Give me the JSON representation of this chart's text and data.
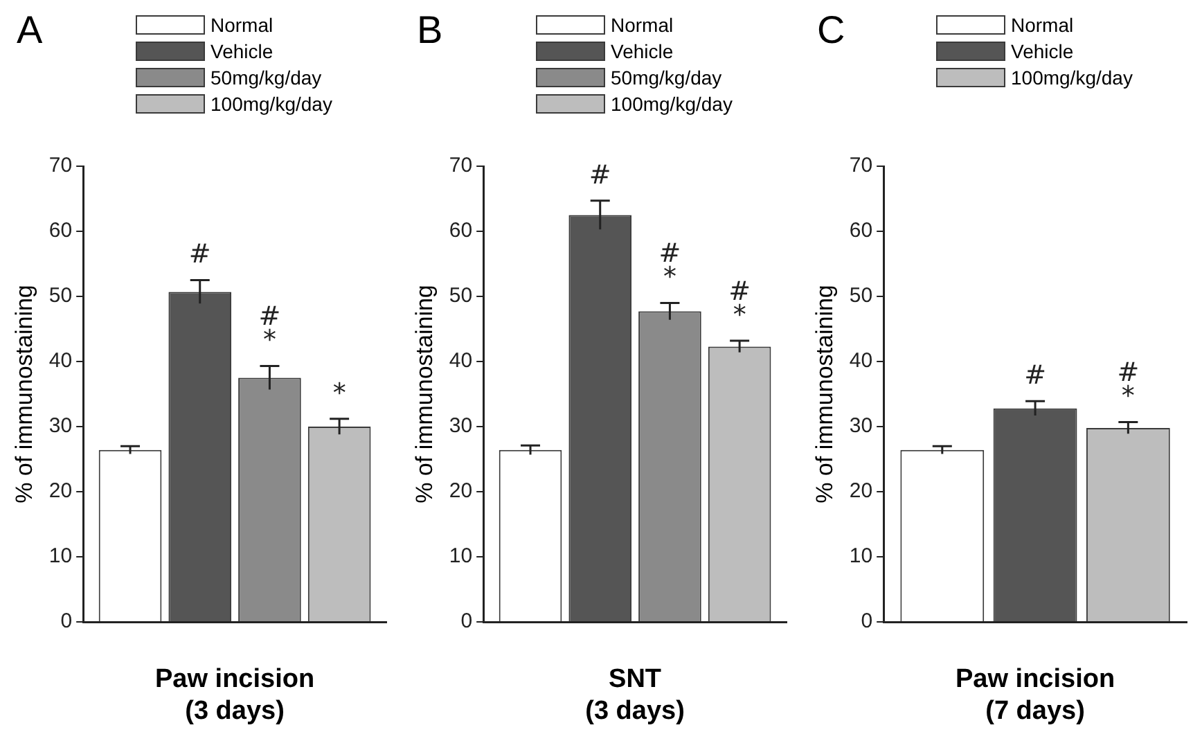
{
  "chart_data": [
    {
      "type": "bar",
      "title": "A",
      "xlabel": "Paw incision\n(3 days)",
      "ylabel": "% of immunostaining",
      "categories": [
        null
      ],
      "ylim": [
        0,
        70
      ],
      "yticks": [
        0,
        10,
        20,
        30,
        40,
        50,
        60,
        70
      ],
      "grid": false,
      "legend": "top",
      "series": [
        {
          "name": "Normal",
          "color": "#ffffff",
          "values": [
            26.4
          ],
          "errors": [
            0.6
          ]
        },
        {
          "name": "Vehicle",
          "color": "#555555",
          "values": [
            50.7
          ],
          "errors": [
            1.8
          ],
          "value_labels": [
            "#"
          ]
        },
        {
          "name": "50mg/kg/day",
          "color": "#8a8a8a",
          "values": [
            37.5
          ],
          "errors": [
            1.8
          ],
          "value_labels": [
            "#\n*"
          ]
        },
        {
          "name": "100mg/kg/day",
          "color": "#bdbdbd",
          "values": [
            30.0
          ],
          "errors": [
            1.2
          ],
          "value_labels": [
            "*"
          ]
        }
      ]
    },
    {
      "type": "bar",
      "title": "B",
      "xlabel": "SNT\n(3 days)",
      "ylabel": "% of immunostaining",
      "categories": [
        null
      ],
      "ylim": [
        0,
        70
      ],
      "yticks": [
        0,
        10,
        20,
        30,
        40,
        50,
        60,
        70
      ],
      "grid": false,
      "legend": "top",
      "series": [
        {
          "name": "Normal",
          "color": "#ffffff",
          "values": [
            26.4
          ],
          "errors": [
            0.7
          ]
        },
        {
          "name": "Vehicle",
          "color": "#555555",
          "values": [
            62.5
          ],
          "errors": [
            2.2
          ],
          "value_labels": [
            "#"
          ]
        },
        {
          "name": "50mg/kg/day",
          "color": "#8a8a8a",
          "values": [
            47.7
          ],
          "errors": [
            1.3
          ],
          "value_labels": [
            "#\n*"
          ]
        },
        {
          "name": "100mg/kg/day",
          "color": "#bdbdbd",
          "values": [
            42.3
          ],
          "errors": [
            0.9
          ],
          "value_labels": [
            "#\n*"
          ]
        }
      ]
    },
    {
      "type": "bar",
      "title": "C",
      "xlabel": "Paw incision\n(7 days)",
      "ylabel": "% of immunostaining",
      "categories": [
        null
      ],
      "ylim": [
        0,
        70
      ],
      "yticks": [
        0,
        10,
        20,
        30,
        40,
        50,
        60,
        70
      ],
      "grid": false,
      "legend": "top",
      "series": [
        {
          "name": "Normal",
          "color": "#ffffff",
          "values": [
            26.4
          ],
          "errors": [
            0.6
          ]
        },
        {
          "name": "Vehicle",
          "color": "#555555",
          "values": [
            32.8
          ],
          "errors": [
            1.1
          ],
          "value_labels": [
            "#"
          ]
        },
        {
          "name": "100mg/kg/day",
          "color": "#bdbdbd",
          "values": [
            29.8
          ],
          "errors": [
            0.9
          ],
          "value_labels": [
            "#\n*"
          ]
        }
      ]
    }
  ]
}
